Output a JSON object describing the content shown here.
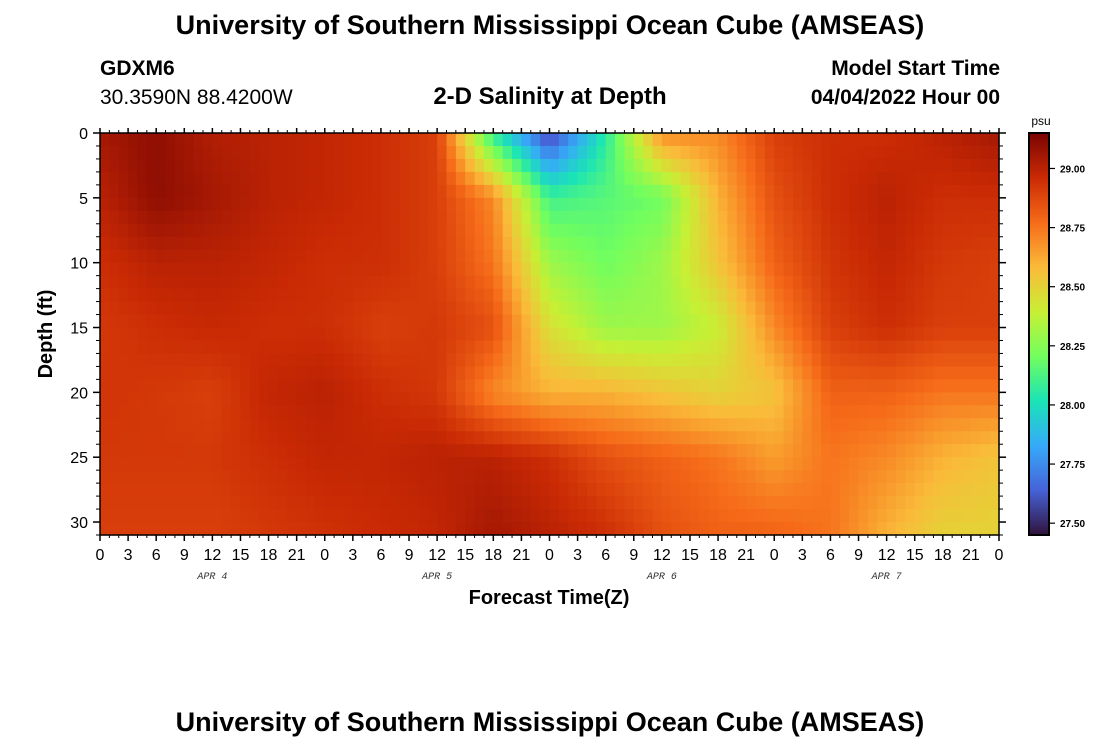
{
  "header": {
    "title": "University of Southern Mississippi Ocean Cube (AMSEAS)",
    "station": "GDXM6",
    "latlon": "30.3590N  88.4200W",
    "chart_title": "2-D Salinity at Depth",
    "start_label": "Model Start Time",
    "start_value": "04/04/2022 Hour 00"
  },
  "footer": {
    "title": "University of Southern Mississippi Ocean Cube (AMSEAS)"
  },
  "chart_data": {
    "type": "heatmap",
    "title": "2-D Salinity at Depth",
    "xlabel": "Forecast Time(Z)",
    "ylabel": "Depth (ft)",
    "x_tick_labels": [
      "0",
      "3",
      "6",
      "9",
      "12",
      "15",
      "18",
      "21",
      "0",
      "3",
      "6",
      "9",
      "12",
      "15",
      "18",
      "21",
      "0",
      "3",
      "6",
      "9",
      "12",
      "15",
      "18",
      "21",
      "0",
      "3",
      "6",
      "9",
      "12",
      "15",
      "18",
      "21",
      "0"
    ],
    "x_day_labels": [
      "APR 4",
      "APR 5",
      "APR 6",
      "APR 7"
    ],
    "xlim_hours": [
      0,
      96
    ],
    "y_ticks": [
      0,
      5,
      10,
      15,
      20,
      25,
      30
    ],
    "ylim": [
      0,
      31
    ],
    "colorbar": {
      "unit": "psu",
      "ticks": [
        "29.00",
        "28.75",
        "28.50",
        "28.25",
        "28.00",
        "27.75",
        "27.50"
      ],
      "tick_values": [
        29.0,
        28.75,
        28.5,
        28.25,
        28.0,
        27.75,
        27.5
      ],
      "range": [
        27.45,
        29.15
      ],
      "colors": [
        "#30123b",
        "#4662d7",
        "#36aaf9",
        "#1ae4b6",
        "#72fe5e",
        "#c8ef34",
        "#faba39",
        "#f66b19",
        "#ca2a04",
        "#7a0403"
      ]
    },
    "x_hours": [
      0,
      6,
      12,
      18,
      24,
      30,
      36,
      42,
      48,
      54,
      60,
      66,
      72,
      78,
      84,
      90,
      96
    ],
    "depths_ft": [
      0,
      5,
      10,
      15,
      20,
      25,
      31
    ],
    "values": [
      [
        29.05,
        29.1,
        29.02,
        29.0,
        28.98,
        28.95,
        28.9,
        28.05,
        27.55,
        28.05,
        28.7,
        28.7,
        28.9,
        28.95,
        28.95,
        29.0,
        29.05
      ],
      [
        29.0,
        29.1,
        29.05,
        29.0,
        28.98,
        28.95,
        28.9,
        28.7,
        28.1,
        28.15,
        28.2,
        28.6,
        28.85,
        28.95,
        29.0,
        28.95,
        28.95
      ],
      [
        28.95,
        29.0,
        29.0,
        28.98,
        28.95,
        28.95,
        28.9,
        28.75,
        28.3,
        28.2,
        28.3,
        28.55,
        28.8,
        28.93,
        28.98,
        28.92,
        28.9
      ],
      [
        28.92,
        28.95,
        28.97,
        28.95,
        28.95,
        28.9,
        28.92,
        28.85,
        28.45,
        28.3,
        28.3,
        28.4,
        28.7,
        28.9,
        28.95,
        28.9,
        28.9
      ],
      [
        28.93,
        28.92,
        28.9,
        28.98,
        29.0,
        28.95,
        28.92,
        28.7,
        28.6,
        28.6,
        28.55,
        28.5,
        28.55,
        28.8,
        28.8,
        28.75,
        28.75
      ],
      [
        28.92,
        28.92,
        28.92,
        28.95,
        28.98,
        28.98,
        29.0,
        29.0,
        28.95,
        28.85,
        28.8,
        28.75,
        28.65,
        28.75,
        28.7,
        28.6,
        28.55
      ],
      [
        28.9,
        28.9,
        28.9,
        28.92,
        28.94,
        28.96,
        28.98,
        29.05,
        29.0,
        28.95,
        28.85,
        28.8,
        28.8,
        28.75,
        28.6,
        28.5,
        28.5
      ]
    ]
  }
}
